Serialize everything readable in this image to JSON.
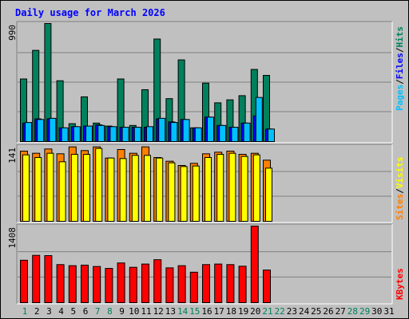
{
  "title": "Daily usage for March 2026",
  "days": [
    "1",
    "2",
    "3",
    "4",
    "5",
    "6",
    "7",
    "8",
    "9",
    "10",
    "11",
    "12",
    "13",
    "14",
    "15",
    "16",
    "17",
    "18",
    "19",
    "20",
    "21",
    "22",
    "23",
    "24",
    "25",
    "26",
    "27",
    "28",
    "29",
    "30",
    "31"
  ],
  "weekend_days": [
    "1",
    "7",
    "8",
    "14",
    "15",
    "21",
    "22",
    "28",
    "29"
  ],
  "scale_labels": {
    "hits": "990",
    "sites": "141",
    "kbytes": "1408"
  },
  "legend": {
    "pages": "Pages",
    "files": "Files",
    "hits": "Hits",
    "sites": "Sites",
    "visits": "Visits",
    "kbytes": "KBytes",
    "sep": "/"
  },
  "colors": {
    "hits": "#00805c",
    "files": "#0000ff",
    "pages": "#00c0ff",
    "visits": "#ffff00",
    "sites": "#ff8000",
    "kbytes": "#ff0000",
    "day_weekday": "#000000",
    "day_weekend": "#00805c",
    "title": "#0000ff",
    "grid": "#808080"
  },
  "chart_data": [
    {
      "type": "bar",
      "ylim": [
        0,
        990
      ],
      "categories": [
        "1",
        "2",
        "3",
        "4",
        "5",
        "6",
        "7",
        "8",
        "9",
        "10",
        "11",
        "12",
        "13",
        "14",
        "15",
        "16",
        "17",
        "18",
        "19",
        "20",
        "21"
      ],
      "series": [
        {
          "name": "Hits",
          "values": [
            525,
            765,
            990,
            510,
            150,
            375,
            155,
            130,
            525,
            135,
            435,
            860,
            360,
            685,
            115,
            490,
            325,
            350,
            385,
            605,
            555
          ]
        },
        {
          "name": "Files",
          "values": [
            155,
            190,
            190,
            115,
            125,
            130,
            140,
            125,
            120,
            120,
            120,
            190,
            165,
            185,
            115,
            205,
            135,
            120,
            155,
            215,
            105
          ]
        },
        {
          "name": "Pages",
          "values": [
            160,
            185,
            195,
            115,
            125,
            130,
            135,
            125,
            120,
            120,
            125,
            195,
            160,
            185,
            115,
            205,
            135,
            120,
            155,
            370,
            105
          ]
        }
      ]
    },
    {
      "type": "bar",
      "ylim": [
        0,
        141
      ],
      "categories": [
        "1",
        "2",
        "3",
        "4",
        "5",
        "6",
        "7",
        "8",
        "9",
        "10",
        "11",
        "12",
        "13",
        "14",
        "15",
        "16",
        "17",
        "18",
        "19",
        "20",
        "21"
      ],
      "series": [
        {
          "name": "Sites",
          "values": [
            132,
            128,
            136,
            127,
            140,
            133,
            140,
            119,
            135,
            128,
            140,
            120,
            113,
            105,
            109,
            127,
            130,
            132,
            126,
            128,
            115
          ]
        },
        {
          "name": "Visits",
          "values": [
            125,
            120,
            128,
            112,
            126,
            126,
            137,
            119,
            118,
            124,
            124,
            119,
            110,
            103,
            104,
            120,
            126,
            128,
            122,
            125,
            100
          ]
        }
      ]
    },
    {
      "type": "bar",
      "ylim": [
        0,
        1408
      ],
      "categories": [
        "1",
        "2",
        "3",
        "4",
        "5",
        "6",
        "7",
        "8",
        "9",
        "10",
        "11",
        "12",
        "13",
        "14",
        "15",
        "16",
        "17",
        "18",
        "19",
        "20",
        "21"
      ],
      "series": [
        {
          "name": "KBytes",
          "values": [
            780,
            870,
            865,
            700,
            680,
            690,
            665,
            630,
            730,
            650,
            710,
            790,
            640,
            680,
            560,
            700,
            710,
            700,
            670,
            1408,
            600
          ]
        }
      ]
    }
  ]
}
